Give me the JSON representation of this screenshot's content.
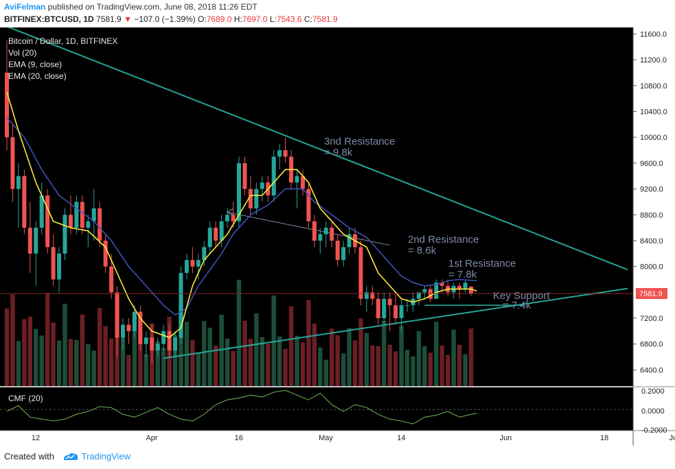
{
  "header": {
    "author": "AviFelman",
    "published": "published on TradingView.com, June 08, 2018 11:26 EDT",
    "symbol": "BITFINEX:BTCUSD, 1D",
    "last": "7581.9",
    "change": "−107.0 (−1.39%)",
    "o_label": "O:",
    "o": "7689.0",
    "h_label": "H:",
    "h": "7697.0",
    "l_label": "L:",
    "l": "7543.6",
    "c_label": "C:",
    "c": "7581.9"
  },
  "legend": {
    "title": "Bitcoin / Dollar, 1D, BITFINEX",
    "vol": "Vol (20)",
    "ema9": "EMA (9, close)",
    "ema20": "EMA (20, close)"
  },
  "cmf": {
    "label": "CMF (20)",
    "ticks": [
      "0.2000",
      "0.0000",
      "-0.2000"
    ]
  },
  "annotations": {
    "res3_a": "3nd Resistance",
    "res3_b": "= 9.8k",
    "res2_a": "2nd Resistance",
    "res2_b": "= 8.6k",
    "res1_a": "1st Resistance",
    "res1_b": "= 7.8k",
    "sup_a": "Key Support",
    "sup_b": "= 7.4k"
  },
  "footer": {
    "created": "Created with",
    "brand": "TradingView"
  },
  "colors": {
    "up": "#26a69a",
    "down": "#ef5350",
    "ema9": "#ffeb3b",
    "ema20": "#3f51b5",
    "trend": "#26a69a",
    "annotation": "#7e8aa8",
    "price_label_bg": "#ef5350",
    "cmf": "#6aa84f"
  },
  "chart_data": {
    "type": "candlestick",
    "price_axis": {
      "ticks": [
        "11600.0",
        "11200.0",
        "10800.0",
        "10400.0",
        "10000.0",
        "9600.0",
        "9200.0",
        "8800.0",
        "8400.0",
        "8000.0",
        "7200.0",
        "6800.0",
        "6400.0"
      ],
      "ylim": [
        6150,
        11700
      ]
    },
    "last_price_label": "7581.9",
    "last_price": 7581.9,
    "x_tick_labels": [
      {
        "label": "12",
        "day": 0
      },
      {
        "label": "Apr",
        "day": 20
      },
      {
        "label": "16",
        "day": 35
      },
      {
        "label": "May",
        "day": 50
      },
      {
        "label": "14",
        "day": 63
      },
      {
        "label": "Jun",
        "day": 81
      },
      {
        "label": "18",
        "day": 98
      },
      {
        "label": "Jul",
        "day": 110
      }
    ],
    "candles": [
      [
        11000,
        11500,
        9800,
        10000
      ],
      [
        10000,
        10200,
        9000,
        9200
      ],
      [
        9200,
        9600,
        8600,
        9400
      ],
      [
        9400,
        9500,
        8500,
        8600
      ],
      [
        8600,
        9000,
        7900,
        8200
      ],
      [
        8200,
        8700,
        7700,
        8600
      ],
      [
        8600,
        9300,
        8500,
        9100
      ],
      [
        9100,
        9200,
        8200,
        8300
      ],
      [
        8300,
        8500,
        7700,
        7800
      ],
      [
        7800,
        8300,
        7600,
        8200
      ],
      [
        8200,
        8900,
        8100,
        8800
      ],
      [
        8800,
        9100,
        8500,
        8600
      ],
      [
        8600,
        9100,
        8500,
        9000
      ],
      [
        9000,
        9100,
        8500,
        8600
      ],
      [
        8600,
        8800,
        8300,
        8700
      ],
      [
        8700,
        9200,
        8400,
        8900
      ],
      [
        8900,
        9000,
        8300,
        8400
      ],
      [
        8400,
        8500,
        7900,
        8000
      ],
      [
        8000,
        8200,
        7500,
        7600
      ],
      [
        7600,
        7700,
        6600,
        6900
      ],
      [
        6900,
        7200,
        6700,
        7100
      ],
      [
        7100,
        7200,
        6800,
        7000
      ],
      [
        7000,
        7400,
        6900,
        7300
      ],
      [
        7300,
        7400,
        6700,
        6800
      ],
      [
        6800,
        7000,
        6600,
        6900
      ],
      [
        6900,
        7100,
        6500,
        6700
      ],
      [
        6700,
        6900,
        6600,
        6800
      ],
      [
        6800,
        7100,
        6700,
        7000
      ],
      [
        7000,
        7100,
        6600,
        6700
      ],
      [
        6700,
        7000,
        6600,
        6900
      ],
      [
        6900,
        8000,
        6800,
        7900
      ],
      [
        7900,
        8200,
        7800,
        8100
      ],
      [
        8100,
        8300,
        7900,
        8000
      ],
      [
        8000,
        8200,
        7800,
        8100
      ],
      [
        8100,
        8400,
        8000,
        8300
      ],
      [
        8300,
        8700,
        8200,
        8600
      ],
      [
        8600,
        8700,
        8300,
        8400
      ],
      [
        8400,
        8800,
        8300,
        8700
      ],
      [
        8700,
        8900,
        8600,
        8800
      ],
      [
        8800,
        9000,
        8600,
        8700
      ],
      [
        8700,
        9700,
        8600,
        9600
      ],
      [
        9600,
        9700,
        9100,
        9200
      ],
      [
        9200,
        9400,
        8800,
        8900
      ],
      [
        8900,
        9300,
        8800,
        9200
      ],
      [
        9200,
        9400,
        9000,
        9300
      ],
      [
        9300,
        9400,
        9000,
        9100
      ],
      [
        9100,
        9800,
        9000,
        9700
      ],
      [
        9700,
        9900,
        9500,
        9800
      ],
      [
        9800,
        10000,
        9600,
        9700
      ],
      [
        9700,
        9800,
        9200,
        9300
      ],
      [
        9300,
        9500,
        8900,
        9400
      ],
      [
        9400,
        9500,
        9100,
        9200
      ],
      [
        9200,
        9300,
        8600,
        8700
      ],
      [
        8700,
        8800,
        8300,
        8400
      ],
      [
        8400,
        8600,
        8200,
        8500
      ],
      [
        8500,
        8700,
        8300,
        8600
      ],
      [
        8600,
        8700,
        8300,
        8400
      ],
      [
        8400,
        8500,
        8000,
        8100
      ],
      [
        8100,
        8400,
        8000,
        8300
      ],
      [
        8300,
        8600,
        8200,
        8500
      ],
      [
        8500,
        8600,
        8200,
        8300
      ],
      [
        8300,
        8400,
        7400,
        7500
      ],
      [
        7500,
        7700,
        7300,
        7600
      ],
      [
        7600,
        7700,
        7400,
        7500
      ],
      [
        7500,
        7600,
        7100,
        7200
      ],
      [
        7200,
        7600,
        7100,
        7500
      ],
      [
        7500,
        7600,
        7000,
        7400
      ],
      [
        7400,
        7600,
        7100,
        7200
      ],
      [
        7200,
        7500,
        7000,
        7400
      ],
      [
        7400,
        7500,
        7300,
        7400
      ],
      [
        7400,
        7600,
        7300,
        7500
      ],
      [
        7500,
        7600,
        7400,
        7600
      ],
      [
        7600,
        7700,
        7500,
        7650
      ],
      [
        7650,
        7700,
        7450,
        7500
      ],
      [
        7500,
        7800,
        7500,
        7750
      ],
      [
        7750,
        7800,
        7600,
        7700
      ],
      [
        7700,
        7800,
        7550,
        7600
      ],
      [
        7600,
        7750,
        7500,
        7700
      ],
      [
        7700,
        7750,
        7500,
        7650
      ],
      [
        7650,
        7800,
        7600,
        7750
      ],
      [
        7689,
        7697,
        7543.6,
        7581.9
      ]
    ],
    "ema9": [
      [
        0,
        10700
      ],
      [
        2,
        10100
      ],
      [
        5,
        9300
      ],
      [
        8,
        8700
      ],
      [
        11,
        8600
      ],
      [
        14,
        8550
      ],
      [
        17,
        8300
      ],
      [
        19,
        7900
      ],
      [
        21,
        7500
      ],
      [
        23,
        7200
      ],
      [
        25,
        7000
      ],
      [
        28,
        6900
      ],
      [
        30,
        7050
      ],
      [
        32,
        7700
      ],
      [
        34,
        8100
      ],
      [
        36,
        8300
      ],
      [
        38,
        8500
      ],
      [
        40,
        8800
      ],
      [
        42,
        9100
      ],
      [
        44,
        9100
      ],
      [
        46,
        9300
      ],
      [
        48,
        9500
      ],
      [
        50,
        9500
      ],
      [
        52,
        9300
      ],
      [
        54,
        8900
      ],
      [
        56,
        8700
      ],
      [
        58,
        8500
      ],
      [
        60,
        8400
      ],
      [
        62,
        8300
      ],
      [
        64,
        7900
      ],
      [
        66,
        7700
      ],
      [
        68,
        7500
      ],
      [
        70,
        7450
      ],
      [
        72,
        7500
      ],
      [
        74,
        7600
      ],
      [
        76,
        7650
      ],
      [
        78,
        7650
      ],
      [
        80,
        7650
      ],
      [
        81,
        7620
      ]
    ],
    "ema20": [
      [
        0,
        10300
      ],
      [
        3,
        10000
      ],
      [
        6,
        9500
      ],
      [
        9,
        9100
      ],
      [
        12,
        8900
      ],
      [
        15,
        8700
      ],
      [
        18,
        8400
      ],
      [
        21,
        8000
      ],
      [
        24,
        7700
      ],
      [
        27,
        7400
      ],
      [
        29,
        7250
      ],
      [
        31,
        7350
      ],
      [
        33,
        7700
      ],
      [
        35,
        7950
      ],
      [
        37,
        8200
      ],
      [
        39,
        8500
      ],
      [
        42,
        8800
      ],
      [
        45,
        8950
      ],
      [
        48,
        9200
      ],
      [
        51,
        9200
      ],
      [
        53,
        9000
      ],
      [
        56,
        8800
      ],
      [
        59,
        8600
      ],
      [
        62,
        8450
      ],
      [
        64,
        8250
      ],
      [
        66,
        8050
      ],
      [
        68,
        7850
      ],
      [
        70,
        7750
      ],
      [
        72,
        7700
      ],
      [
        74,
        7720
      ],
      [
        76,
        7780
      ],
      [
        78,
        7800
      ],
      [
        81,
        7780
      ]
    ],
    "trendlines": [
      {
        "from": [
          -1,
          11750
        ],
        "to": [
          107,
          7950
        ]
      },
      {
        "from": [
          27,
          6580
        ],
        "to": [
          107,
          7660
        ]
      },
      {
        "from": [
          72,
          7400
        ],
        "to": [
          89,
          7400
        ]
      },
      {
        "from": [
          38,
          8840
        ],
        "to": [
          66,
          8330
        ]
      }
    ],
    "volume_note": "Volume bars shown below price (Vol 20)",
    "cmf_values": [
      [
        0,
        -0.02
      ],
      [
        2,
        0.04
      ],
      [
        4,
        -0.08
      ],
      [
        6,
        -0.1
      ],
      [
        8,
        -0.12
      ],
      [
        10,
        -0.1
      ],
      [
        12,
        -0.05
      ],
      [
        14,
        -0.02
      ],
      [
        16,
        0.03
      ],
      [
        18,
        0.02
      ],
      [
        20,
        -0.05
      ],
      [
        22,
        -0.08
      ],
      [
        24,
        -0.03
      ],
      [
        26,
        0.02
      ],
      [
        28,
        -0.05
      ],
      [
        30,
        -0.1
      ],
      [
        32,
        -0.12
      ],
      [
        34,
        -0.05
      ],
      [
        36,
        0.05
      ],
      [
        38,
        0.1
      ],
      [
        40,
        0.12
      ],
      [
        42,
        0.15
      ],
      [
        44,
        0.13
      ],
      [
        46,
        0.18
      ],
      [
        48,
        0.2
      ],
      [
        50,
        0.15
      ],
      [
        52,
        0.1
      ],
      [
        54,
        0.17
      ],
      [
        56,
        0.05
      ],
      [
        58,
        -0.02
      ],
      [
        60,
        0.05
      ],
      [
        62,
        0.02
      ],
      [
        64,
        -0.05
      ],
      [
        66,
        -0.1
      ],
      [
        68,
        -0.12
      ],
      [
        70,
        -0.15
      ],
      [
        72,
        -0.08
      ],
      [
        74,
        -0.06
      ],
      [
        76,
        -0.02
      ],
      [
        78,
        -0.08
      ],
      [
        80,
        -0.05
      ],
      [
        81,
        -0.04
      ]
    ]
  }
}
